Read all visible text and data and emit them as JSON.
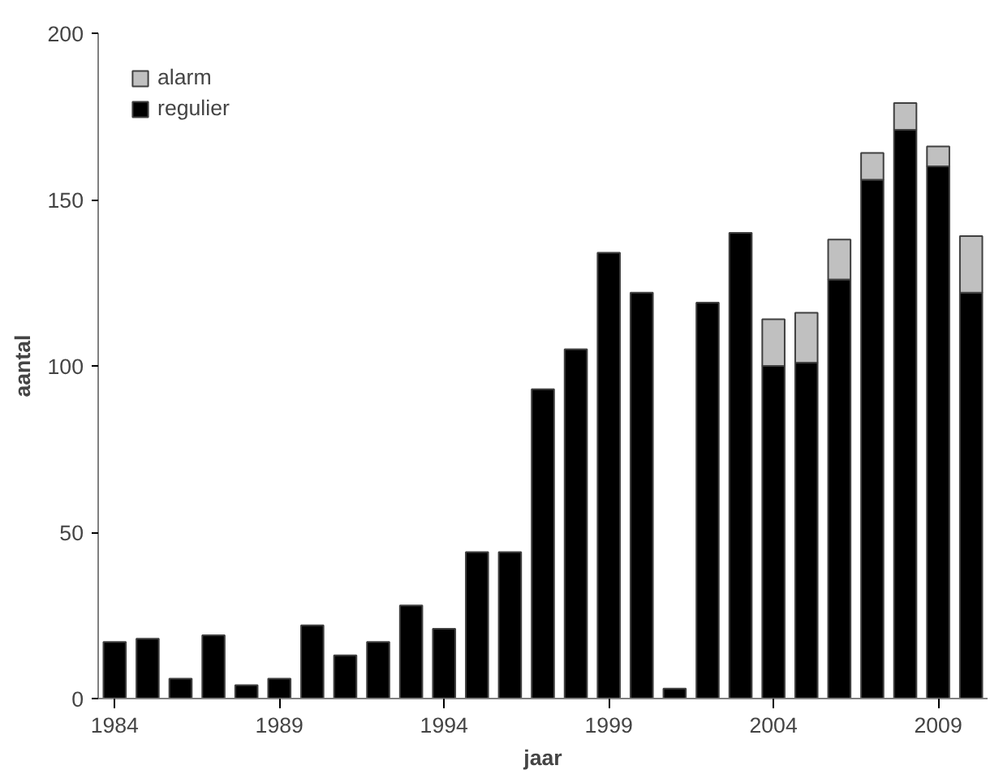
{
  "chart_data": {
    "type": "bar",
    "stacked": true,
    "xlabel": "jaar",
    "ylabel": "aantal",
    "x": [
      1984,
      1985,
      1986,
      1987,
      1988,
      1989,
      1990,
      1991,
      1992,
      1993,
      1994,
      1995,
      1996,
      1997,
      1998,
      1999,
      2000,
      2001,
      2002,
      2003,
      2004,
      2005,
      2006,
      2007,
      2008,
      2009,
      2010
    ],
    "series": [
      {
        "name": "regulier",
        "color": "#000000",
        "values": [
          17,
          18,
          6,
          19,
          4,
          6,
          22,
          13,
          17,
          28,
          21,
          44,
          44,
          93,
          105,
          134,
          122,
          3,
          119,
          140,
          100,
          101,
          126,
          156,
          171,
          160,
          122
        ]
      },
      {
        "name": "alarm",
        "color": "#c0c0c0",
        "values": [
          0,
          0,
          0,
          0,
          0,
          0,
          0,
          0,
          0,
          0,
          0,
          0,
          0,
          0,
          0,
          0,
          0,
          0,
          0,
          0,
          14,
          15,
          12,
          8,
          8,
          6,
          17
        ]
      }
    ],
    "xlim": [
      1983.5,
      2010.5
    ],
    "xticks": [
      1984,
      1989,
      1994,
      1999,
      2004,
      2009
    ],
    "ylim": [
      0,
      200
    ],
    "yticks": [
      0,
      50,
      100,
      150,
      200
    ],
    "grid": false,
    "legend": "top left"
  }
}
